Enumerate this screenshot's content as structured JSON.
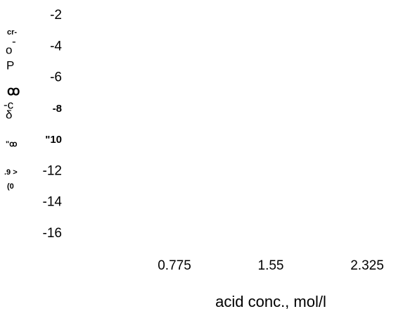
{
  "chart_data": {
    "type": "line",
    "xlabel": "acid conc., mol/l",
    "ylabel_fragments": [
      "cr-",
      "-",
      "o",
      "P",
      "ꝏ",
      "-c",
      "δ",
      "\"ꝏ",
      ".9 >",
      "(0"
    ],
    "xlim": [
      0,
      2.325
    ],
    "xticks": [
      0.775,
      1.55,
      2.325
    ],
    "ylim": [
      -16,
      -2
    ],
    "yticks": [
      -2,
      -4,
      -6,
      -8,
      {
        "value": -10,
        "label": "\"10"
      },
      -12,
      -14,
      -16
    ],
    "series": []
  }
}
